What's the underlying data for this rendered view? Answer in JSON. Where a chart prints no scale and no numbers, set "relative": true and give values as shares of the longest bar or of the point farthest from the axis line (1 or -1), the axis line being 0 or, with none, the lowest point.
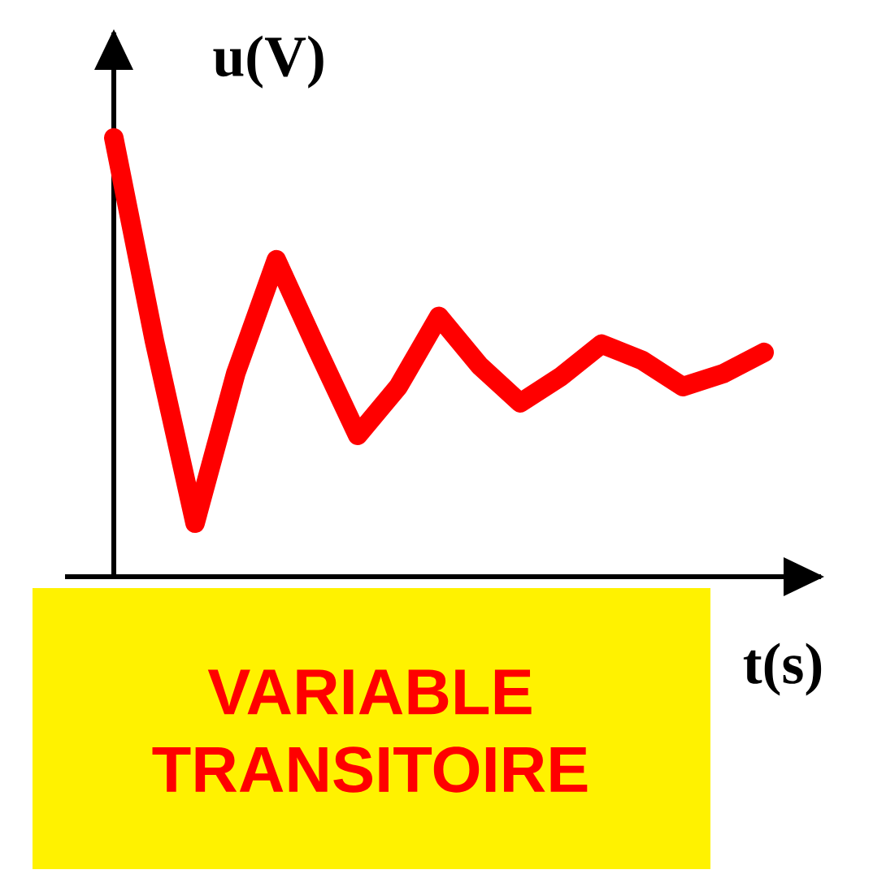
{
  "chart_data": {
    "type": "line",
    "title": "VARIABLE TRANSITOIRE",
    "xlabel": "t(s)",
    "ylabel": "u(V)",
    "relative": true,
    "color": "#ff0000",
    "categories": [
      null,
      null,
      null,
      null,
      null,
      null,
      null,
      null,
      null,
      null,
      null,
      null,
      null,
      null,
      null,
      null,
      null
    ],
    "values": [
      1.0,
      0.537,
      0.122,
      0.463,
      0.722,
      0.519,
      0.322,
      0.433,
      0.593,
      0.481,
      0.396,
      0.456,
      0.53,
      0.493,
      0.433,
      0.463,
      0.511
    ]
  }
}
